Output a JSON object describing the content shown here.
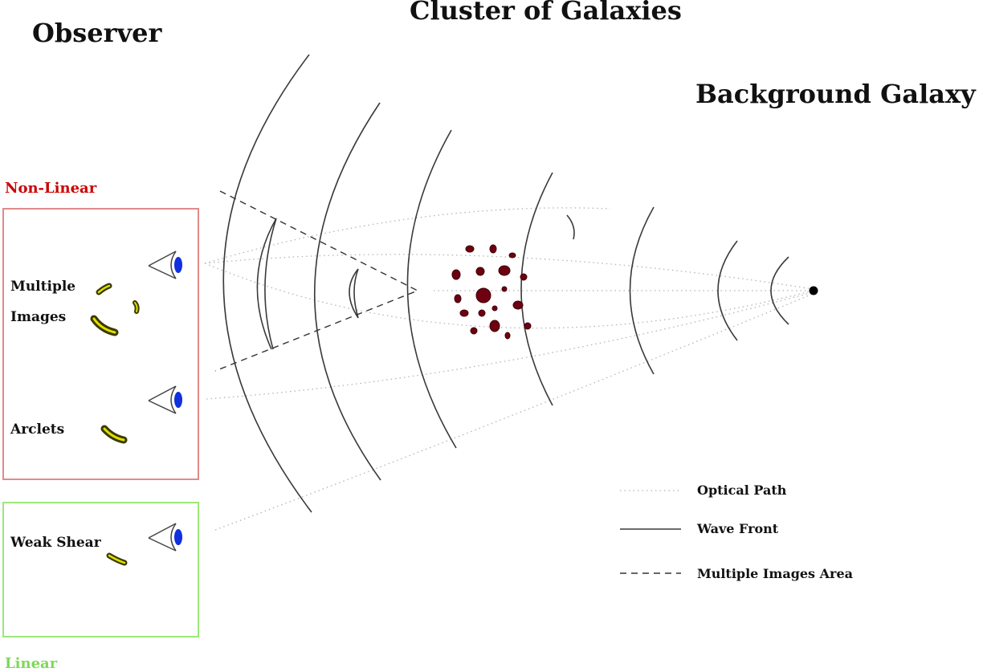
{
  "titles": {
    "observer": "Observer",
    "cluster": "Cluster of Galaxies",
    "background": "Background Galaxy"
  },
  "regions": {
    "nonlinear": {
      "label": "Non-Linear",
      "color": "#cc0000",
      "border": "#e08a8a"
    },
    "linear": {
      "label": "Linear",
      "color": "#7ed957",
      "border": "#9be87a"
    }
  },
  "observer_labels": {
    "multiple_images": [
      "Multiple",
      "Images"
    ],
    "arclets": "Arclets",
    "weak_shear": "Weak Shear"
  },
  "legend": {
    "optical_path": "Optical Path",
    "wave_front": "Wave Front",
    "multiple_images_area": "Multiple Images Area"
  },
  "colors": {
    "cluster_galaxy": "#6e0010",
    "image_fill": "#3a3a00",
    "image_edge": "#e0e000",
    "eye_pupil": "#1030e0"
  }
}
